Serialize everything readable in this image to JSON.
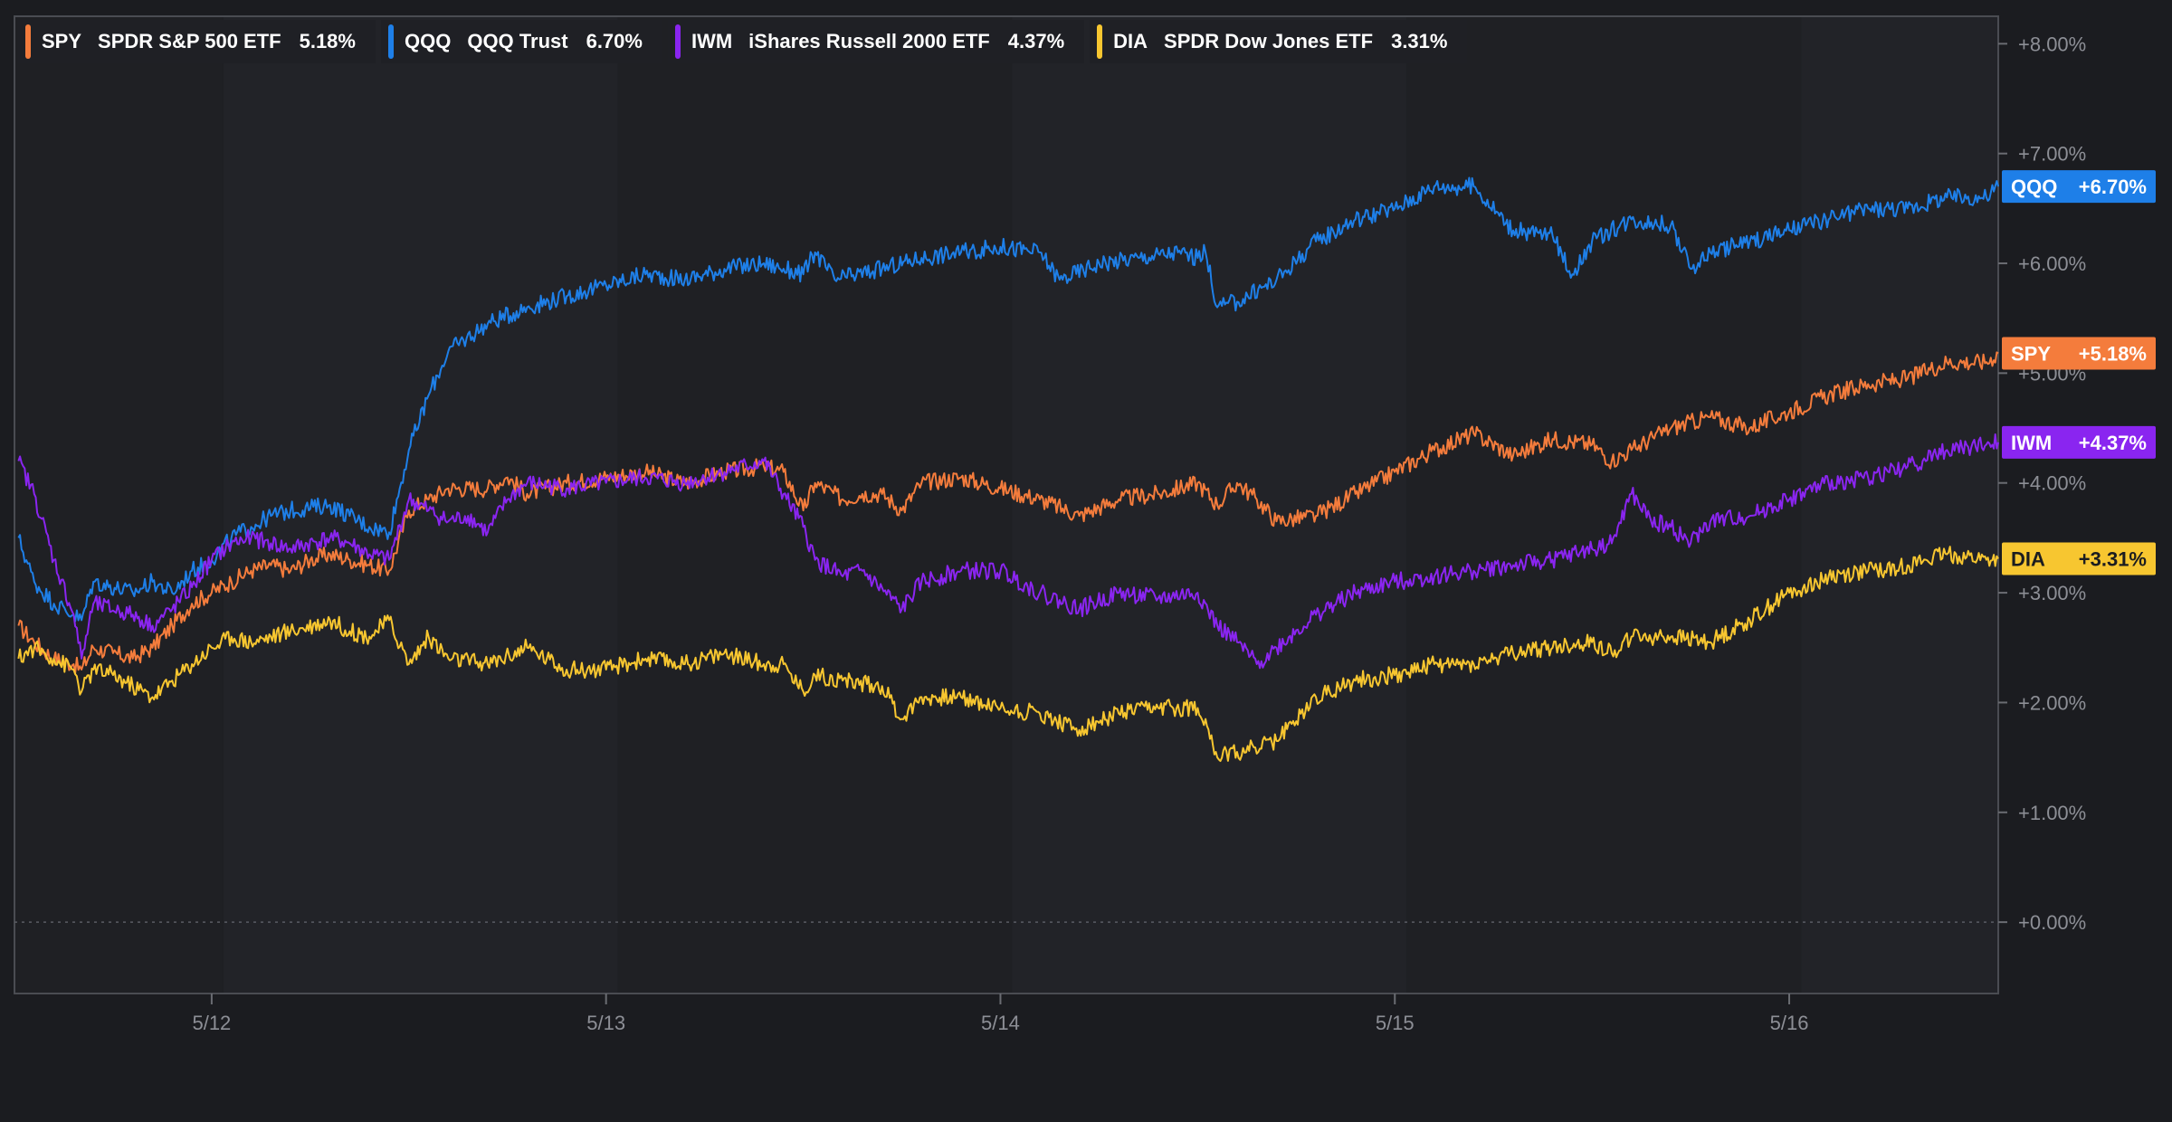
{
  "legend": [
    {
      "symbol": "SPY",
      "name": "SPDR S&P 500 ETF",
      "change": "5.18%",
      "color": "#f47c3c"
    },
    {
      "symbol": "QQQ",
      "name": "QQQ Trust",
      "change": "6.70%",
      "color": "#1e7fe8"
    },
    {
      "symbol": "IWM",
      "name": "iShares Russell 2000 ETF",
      "change": "4.37%",
      "color": "#8a25f0"
    },
    {
      "symbol": "DIA",
      "name": "SPDR Dow Jones ETF",
      "change": "3.31%",
      "color": "#f7c630"
    }
  ],
  "end_labels": [
    {
      "symbol": "QQQ",
      "value": "+6.70%",
      "color": "#1e7fe8",
      "y": 6.7
    },
    {
      "symbol": "SPY",
      "value": "+5.18%",
      "color": "#f47c3c",
      "y": 5.18
    },
    {
      "symbol": "IWM",
      "value": "+4.37%",
      "color": "#8a25f0",
      "y": 4.37
    },
    {
      "symbol": "DIA",
      "value": "+3.31%",
      "color": "#f7c630",
      "y": 3.31
    }
  ],
  "chart_data": {
    "type": "line",
    "title": "",
    "xlabel": "",
    "ylabel": "",
    "x_tick_labels": [
      {
        "label": "5/12",
        "x": 0.5
      },
      {
        "label": "5/13",
        "x": 1.5
      },
      {
        "label": "5/14",
        "x": 2.5
      },
      {
        "label": "5/15",
        "x": 3.5
      },
      {
        "label": "5/16",
        "x": 4.5
      }
    ],
    "y_tick_labels": [
      "+0.00%",
      "+1.00%",
      "+2.00%",
      "+3.00%",
      "+4.00%",
      "+5.00%",
      "+6.00%",
      "+7.00%",
      "+8.00%"
    ],
    "ylim": [
      -0.65,
      8.25
    ],
    "xlim": [
      0,
      5.03
    ],
    "y_axis_position": "right",
    "baseline": 0,
    "series": [
      {
        "name": "SPY",
        "color": "#f47c3c",
        "points": [
          [
            0.01,
            2.7
          ],
          [
            0.05,
            2.55
          ],
          [
            0.1,
            2.4
          ],
          [
            0.15,
            2.35
          ],
          [
            0.17,
            2.3
          ],
          [
            0.2,
            2.5
          ],
          [
            0.25,
            2.45
          ],
          [
            0.3,
            2.4
          ],
          [
            0.35,
            2.5
          ],
          [
            0.4,
            2.7
          ],
          [
            0.45,
            2.9
          ],
          [
            0.5,
            3.0
          ],
          [
            0.55,
            3.1
          ],
          [
            0.6,
            3.2
          ],
          [
            0.65,
            3.25
          ],
          [
            0.7,
            3.2
          ],
          [
            0.75,
            3.3
          ],
          [
            0.8,
            3.35
          ],
          [
            0.85,
            3.3
          ],
          [
            0.9,
            3.25
          ],
          [
            0.95,
            3.2
          ],
          [
            1.0,
            3.75
          ],
          [
            1.05,
            3.85
          ],
          [
            1.1,
            3.95
          ],
          [
            1.2,
            3.95
          ],
          [
            1.25,
            4.05
          ],
          [
            1.3,
            3.9
          ],
          [
            1.4,
            4.0
          ],
          [
            1.5,
            4.05
          ],
          [
            1.6,
            4.1
          ],
          [
            1.7,
            4.0
          ],
          [
            1.8,
            4.1
          ],
          [
            1.9,
            4.15
          ],
          [
            1.95,
            4.1
          ],
          [
            2.0,
            3.75
          ],
          [
            2.03,
            4.0
          ],
          [
            2.1,
            3.85
          ],
          [
            2.15,
            3.9
          ],
          [
            2.2,
            3.9
          ],
          [
            2.25,
            3.75
          ],
          [
            2.3,
            4.0
          ],
          [
            2.4,
            4.05
          ],
          [
            2.5,
            3.95
          ],
          [
            2.6,
            3.85
          ],
          [
            2.7,
            3.7
          ],
          [
            2.8,
            3.85
          ],
          [
            2.9,
            3.9
          ],
          [
            3.0,
            4.0
          ],
          [
            3.05,
            3.8
          ],
          [
            3.1,
            4.0
          ],
          [
            3.15,
            3.85
          ],
          [
            3.2,
            3.65
          ],
          [
            3.3,
            3.7
          ],
          [
            3.4,
            3.9
          ],
          [
            3.5,
            4.1
          ],
          [
            3.6,
            4.3
          ],
          [
            3.7,
            4.45
          ],
          [
            3.8,
            4.25
          ],
          [
            3.9,
            4.4
          ],
          [
            4.0,
            4.35
          ],
          [
            4.05,
            4.2
          ],
          [
            4.1,
            4.3
          ],
          [
            4.2,
            4.5
          ],
          [
            4.3,
            4.6
          ],
          [
            4.4,
            4.5
          ],
          [
            4.5,
            4.65
          ],
          [
            4.6,
            4.8
          ],
          [
            4.7,
            4.9
          ],
          [
            4.8,
            4.95
          ],
          [
            4.9,
            5.1
          ],
          [
            5.0,
            5.1
          ],
          [
            5.03,
            5.18
          ]
        ]
      },
      {
        "name": "QQQ",
        "color": "#1e7fe8",
        "points": [
          [
            0.01,
            3.5
          ],
          [
            0.05,
            3.1
          ],
          [
            0.1,
            2.9
          ],
          [
            0.15,
            2.8
          ],
          [
            0.17,
            2.75
          ],
          [
            0.2,
            3.1
          ],
          [
            0.3,
            3.0
          ],
          [
            0.35,
            3.1
          ],
          [
            0.4,
            3.0
          ],
          [
            0.45,
            3.2
          ],
          [
            0.5,
            3.3
          ],
          [
            0.55,
            3.5
          ],
          [
            0.6,
            3.6
          ],
          [
            0.65,
            3.7
          ],
          [
            0.7,
            3.75
          ],
          [
            0.8,
            3.8
          ],
          [
            0.85,
            3.7
          ],
          [
            0.9,
            3.6
          ],
          [
            0.95,
            3.55
          ],
          [
            1.0,
            4.3
          ],
          [
            1.05,
            4.8
          ],
          [
            1.1,
            5.2
          ],
          [
            1.2,
            5.45
          ],
          [
            1.3,
            5.6
          ],
          [
            1.4,
            5.7
          ],
          [
            1.5,
            5.8
          ],
          [
            1.6,
            5.9
          ],
          [
            1.7,
            5.85
          ],
          [
            1.8,
            5.95
          ],
          [
            1.9,
            6.0
          ],
          [
            1.95,
            5.95
          ],
          [
            2.0,
            5.9
          ],
          [
            2.03,
            6.1
          ],
          [
            2.08,
            5.85
          ],
          [
            2.2,
            5.95
          ],
          [
            2.3,
            6.05
          ],
          [
            2.4,
            6.1
          ],
          [
            2.5,
            6.15
          ],
          [
            2.6,
            6.1
          ],
          [
            2.65,
            5.85
          ],
          [
            2.75,
            6.0
          ],
          [
            2.85,
            6.05
          ],
          [
            2.95,
            6.1
          ],
          [
            3.0,
            6.05
          ],
          [
            3.02,
            6.1
          ],
          [
            3.05,
            5.6
          ],
          [
            3.1,
            5.65
          ],
          [
            3.2,
            5.85
          ],
          [
            3.3,
            6.2
          ],
          [
            3.4,
            6.4
          ],
          [
            3.5,
            6.5
          ],
          [
            3.6,
            6.7
          ],
          [
            3.7,
            6.7
          ],
          [
            3.8,
            6.3
          ],
          [
            3.9,
            6.25
          ],
          [
            3.95,
            5.9
          ],
          [
            4.0,
            6.2
          ],
          [
            4.1,
            6.4
          ],
          [
            4.2,
            6.35
          ],
          [
            4.25,
            5.95
          ],
          [
            4.3,
            6.1
          ],
          [
            4.4,
            6.2
          ],
          [
            4.5,
            6.3
          ],
          [
            4.6,
            6.4
          ],
          [
            4.7,
            6.5
          ],
          [
            4.8,
            6.5
          ],
          [
            4.9,
            6.6
          ],
          [
            5.0,
            6.6
          ],
          [
            5.03,
            6.7
          ]
        ]
      },
      {
        "name": "IWM",
        "color": "#8a25f0",
        "points": [
          [
            0.01,
            4.2
          ],
          [
            0.05,
            3.9
          ],
          [
            0.1,
            3.3
          ],
          [
            0.15,
            2.8
          ],
          [
            0.17,
            2.4
          ],
          [
            0.2,
            2.9
          ],
          [
            0.3,
            2.8
          ],
          [
            0.35,
            2.7
          ],
          [
            0.4,
            2.85
          ],
          [
            0.45,
            3.05
          ],
          [
            0.5,
            3.3
          ],
          [
            0.55,
            3.45
          ],
          [
            0.6,
            3.5
          ],
          [
            0.65,
            3.45
          ],
          [
            0.7,
            3.4
          ],
          [
            0.8,
            3.5
          ],
          [
            0.85,
            3.45
          ],
          [
            0.9,
            3.35
          ],
          [
            0.95,
            3.3
          ],
          [
            1.0,
            3.85
          ],
          [
            1.05,
            3.75
          ],
          [
            1.1,
            3.65
          ],
          [
            1.15,
            3.7
          ],
          [
            1.2,
            3.55
          ],
          [
            1.25,
            3.85
          ],
          [
            1.3,
            4.0
          ],
          [
            1.4,
            3.95
          ],
          [
            1.5,
            4.0
          ],
          [
            1.6,
            4.05
          ],
          [
            1.7,
            4.0
          ],
          [
            1.8,
            4.1
          ],
          [
            1.9,
            4.2
          ],
          [
            1.95,
            3.9
          ],
          [
            2.0,
            3.6
          ],
          [
            2.03,
            3.3
          ],
          [
            2.1,
            3.15
          ],
          [
            2.15,
            3.2
          ],
          [
            2.25,
            2.85
          ],
          [
            2.3,
            3.1
          ],
          [
            2.4,
            3.2
          ],
          [
            2.5,
            3.2
          ],
          [
            2.6,
            3.0
          ],
          [
            2.7,
            2.85
          ],
          [
            2.8,
            3.0
          ],
          [
            2.9,
            2.95
          ],
          [
            3.0,
            3.0
          ],
          [
            3.05,
            2.7
          ],
          [
            3.1,
            2.55
          ],
          [
            3.15,
            2.35
          ],
          [
            3.2,
            2.5
          ],
          [
            3.3,
            2.8
          ],
          [
            3.4,
            3.0
          ],
          [
            3.5,
            3.1
          ],
          [
            3.6,
            3.15
          ],
          [
            3.7,
            3.2
          ],
          [
            3.8,
            3.25
          ],
          [
            3.9,
            3.3
          ],
          [
            4.0,
            3.4
          ],
          [
            4.05,
            3.45
          ],
          [
            4.1,
            3.9
          ],
          [
            4.15,
            3.65
          ],
          [
            4.2,
            3.6
          ],
          [
            4.25,
            3.45
          ],
          [
            4.3,
            3.65
          ],
          [
            4.4,
            3.7
          ],
          [
            4.5,
            3.85
          ],
          [
            4.6,
            4.0
          ],
          [
            4.7,
            4.05
          ],
          [
            4.8,
            4.15
          ],
          [
            4.9,
            4.3
          ],
          [
            5.0,
            4.35
          ],
          [
            5.03,
            4.37
          ]
        ]
      },
      {
        "name": "DIA",
        "color": "#f7c630",
        "points": [
          [
            0.01,
            2.4
          ],
          [
            0.05,
            2.5
          ],
          [
            0.1,
            2.4
          ],
          [
            0.15,
            2.3
          ],
          [
            0.17,
            2.1
          ],
          [
            0.2,
            2.3
          ],
          [
            0.25,
            2.25
          ],
          [
            0.3,
            2.15
          ],
          [
            0.35,
            2.05
          ],
          [
            0.4,
            2.2
          ],
          [
            0.45,
            2.35
          ],
          [
            0.5,
            2.5
          ],
          [
            0.55,
            2.6
          ],
          [
            0.6,
            2.55
          ],
          [
            0.65,
            2.6
          ],
          [
            0.7,
            2.65
          ],
          [
            0.8,
            2.75
          ],
          [
            0.85,
            2.65
          ],
          [
            0.9,
            2.6
          ],
          [
            0.95,
            2.75
          ],
          [
            1.0,
            2.35
          ],
          [
            1.05,
            2.6
          ],
          [
            1.1,
            2.4
          ],
          [
            1.2,
            2.35
          ],
          [
            1.3,
            2.5
          ],
          [
            1.4,
            2.3
          ],
          [
            1.5,
            2.3
          ],
          [
            1.6,
            2.4
          ],
          [
            1.7,
            2.35
          ],
          [
            1.8,
            2.45
          ],
          [
            1.9,
            2.35
          ],
          [
            1.95,
            2.35
          ],
          [
            2.0,
            2.1
          ],
          [
            2.03,
            2.25
          ],
          [
            2.1,
            2.2
          ],
          [
            2.2,
            2.15
          ],
          [
            2.25,
            1.85
          ],
          [
            2.3,
            2.05
          ],
          [
            2.4,
            2.05
          ],
          [
            2.5,
            1.95
          ],
          [
            2.6,
            1.9
          ],
          [
            2.7,
            1.75
          ],
          [
            2.8,
            1.9
          ],
          [
            2.9,
            1.95
          ],
          [
            3.0,
            1.95
          ],
          [
            3.02,
            1.85
          ],
          [
            3.05,
            1.5
          ],
          [
            3.1,
            1.55
          ],
          [
            3.2,
            1.65
          ],
          [
            3.3,
            2.05
          ],
          [
            3.4,
            2.2
          ],
          [
            3.5,
            2.25
          ],
          [
            3.6,
            2.35
          ],
          [
            3.7,
            2.35
          ],
          [
            3.8,
            2.45
          ],
          [
            3.9,
            2.5
          ],
          [
            4.0,
            2.55
          ],
          [
            4.05,
            2.45
          ],
          [
            4.1,
            2.6
          ],
          [
            4.2,
            2.6
          ],
          [
            4.3,
            2.55
          ],
          [
            4.4,
            2.75
          ],
          [
            4.5,
            3.0
          ],
          [
            4.6,
            3.15
          ],
          [
            4.7,
            3.2
          ],
          [
            4.8,
            3.25
          ],
          [
            4.9,
            3.35
          ],
          [
            5.0,
            3.3
          ],
          [
            5.03,
            3.31
          ]
        ]
      }
    ]
  }
}
